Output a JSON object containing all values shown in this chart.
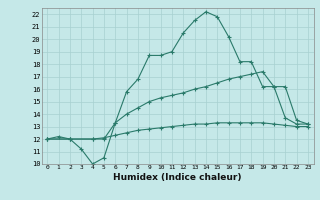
{
  "title": "",
  "xlabel": "Humidex (Indice chaleur)",
  "background_color": "#c5e8e8",
  "grid_color": "#a8d0d0",
  "line_color": "#2a7a6a",
  "xlim": [
    -0.5,
    23.5
  ],
  "ylim": [
    10,
    22.5
  ],
  "xticks": [
    0,
    1,
    2,
    3,
    4,
    5,
    6,
    7,
    8,
    9,
    10,
    11,
    12,
    13,
    14,
    15,
    16,
    17,
    18,
    19,
    20,
    21,
    22,
    23
  ],
  "yticks": [
    10,
    11,
    12,
    13,
    14,
    15,
    16,
    17,
    18,
    19,
    20,
    21,
    22
  ],
  "line1_x": [
    0,
    1,
    2,
    3,
    4,
    5,
    6,
    7,
    8,
    9,
    10,
    11,
    12,
    13,
    14,
    15,
    16,
    17,
    18,
    19,
    20,
    21,
    22,
    23
  ],
  "line1_y": [
    12,
    12.2,
    12,
    11.2,
    10,
    10.5,
    13.3,
    15.8,
    16.8,
    18.7,
    18.7,
    19.0,
    20.5,
    21.5,
    22.2,
    21.8,
    20.2,
    18.2,
    18.2,
    16.2,
    16.2,
    13.7,
    13.2,
    13.2
  ],
  "line2_x": [
    0,
    2,
    4,
    5,
    6,
    7,
    8,
    9,
    10,
    11,
    12,
    13,
    14,
    15,
    16,
    17,
    18,
    19,
    20,
    21,
    22,
    23
  ],
  "line2_y": [
    12,
    12,
    12,
    12,
    13.3,
    14.0,
    14.5,
    15.0,
    15.3,
    15.5,
    15.7,
    16.0,
    16.2,
    16.5,
    16.8,
    17.0,
    17.2,
    17.4,
    16.2,
    16.2,
    13.5,
    13.2
  ],
  "line3_x": [
    0,
    2,
    4,
    5,
    6,
    7,
    8,
    9,
    10,
    11,
    12,
    13,
    14,
    15,
    16,
    17,
    18,
    19,
    20,
    21,
    22,
    23
  ],
  "line3_y": [
    12,
    12,
    12,
    12.1,
    12.3,
    12.5,
    12.7,
    12.8,
    12.9,
    13.0,
    13.1,
    13.2,
    13.2,
    13.3,
    13.3,
    13.3,
    13.3,
    13.3,
    13.2,
    13.1,
    13.0,
    13.0
  ]
}
